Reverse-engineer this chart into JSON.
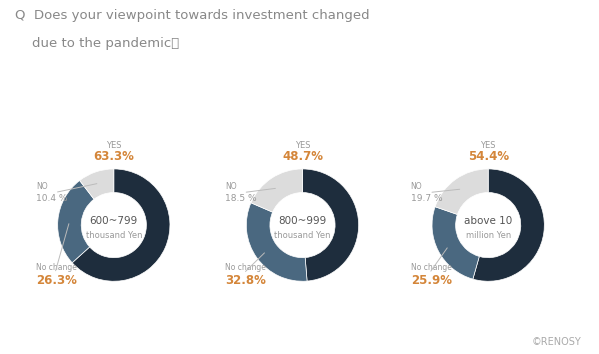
{
  "title_line1": "Q  Does your viewpoint towards investment changed",
  "title_line2": "    due to the pandemic？",
  "charts": [
    {
      "center_line1": "600~799",
      "center_line2": "thousand Yen",
      "yes": 63.3,
      "no": 10.4,
      "no_change": 26.3
    },
    {
      "center_line1": "800~999",
      "center_line2": "thousand Yen",
      "yes": 48.7,
      "no": 18.5,
      "no_change": 32.8
    },
    {
      "center_line1": "above 10",
      "center_line2": "million Yen",
      "yes": 54.4,
      "no": 19.7,
      "no_change": 25.9
    }
  ],
  "colors": {
    "yes": "#1e2d3d",
    "no": "#dcdcdc",
    "no_change": "#4a6880",
    "orange": "#d4863a",
    "gray": "#999999",
    "dark": "#555555",
    "bg": "#ffffff"
  },
  "renosy_text": "©RENOSY"
}
